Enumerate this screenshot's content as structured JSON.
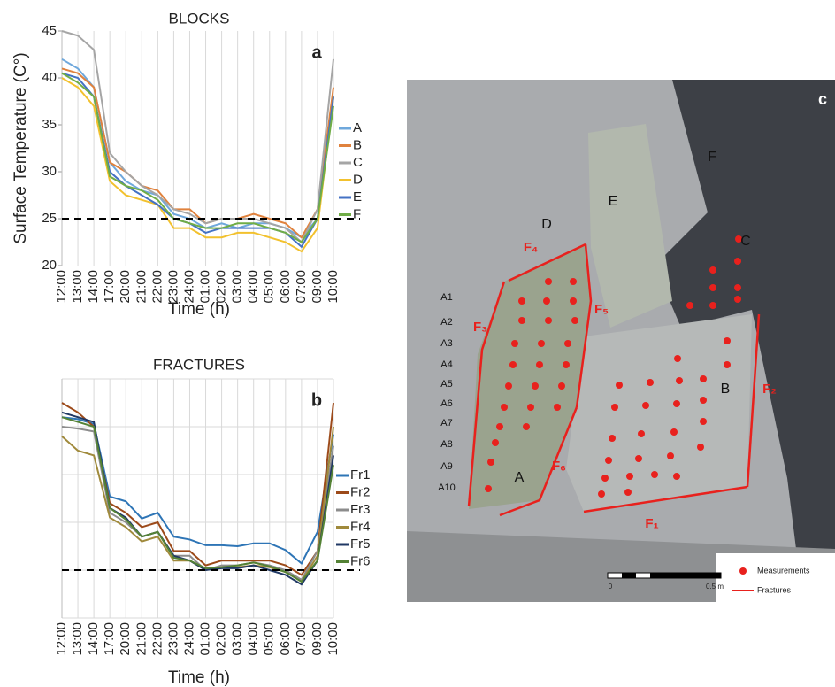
{
  "chart_data": [
    {
      "type": "line",
      "title": "BLOCKS",
      "panel": "a",
      "y_label": "Surface Temperature  (C°)",
      "x_label": "Time (h)",
      "categories": [
        "12:00",
        "13:00",
        "14:00",
        "17:00",
        "20:00",
        "21:00",
        "22:00",
        "23:00",
        "24:00",
        "01:00",
        "02:00",
        "03:00",
        "04:00",
        "05:00",
        "06:00",
        "07:00",
        "09:00",
        "10:00"
      ],
      "ylim": [
        20,
        45
      ],
      "yticks": [
        20,
        25,
        30,
        35,
        40,
        45
      ],
      "ytick_labels": true,
      "vertical_grid": true,
      "reference_line": 25,
      "series": [
        {
          "name": "A",
          "color": "#6fa8dc",
          "values": [
            42,
            41,
            39,
            31,
            29,
            28,
            27.5,
            25.5,
            25,
            24,
            24.5,
            24,
            24.5,
            24.5,
            24,
            23,
            25,
            38
          ]
        },
        {
          "name": "B",
          "color": "#e0823d",
          "values": [
            41,
            40.5,
            39,
            31,
            30,
            28.5,
            28,
            26,
            26,
            24.5,
            25,
            25,
            25.5,
            25,
            24.5,
            23,
            26,
            39
          ]
        },
        {
          "name": "C",
          "color": "#a5a5a5",
          "values": [
            45,
            44.5,
            43,
            32,
            30,
            28.5,
            27.5,
            26,
            25.5,
            24.5,
            25,
            25,
            25,
            24.5,
            24,
            22.5,
            26,
            42
          ]
        },
        {
          "name": "D",
          "color": "#f2c12e",
          "values": [
            40,
            39,
            37,
            29,
            27.5,
            27,
            26.5,
            24,
            24,
            23,
            23,
            23.5,
            23.5,
            23,
            22.5,
            21.5,
            24,
            38
          ]
        },
        {
          "name": "E",
          "color": "#4472c4",
          "values": [
            40.5,
            40,
            38,
            30,
            28.5,
            27.5,
            26.5,
            25,
            24.5,
            23.5,
            24,
            24,
            24,
            24,
            23.5,
            22,
            25,
            38
          ]
        },
        {
          "name": "F",
          "color": "#70ad47",
          "values": [
            40.5,
            39.5,
            38,
            29.5,
            28.5,
            28,
            27,
            25,
            24.5,
            24,
            24,
            24.5,
            24.5,
            24,
            23.5,
            22.5,
            25,
            37
          ]
        }
      ]
    },
    {
      "type": "line",
      "title": "FRACTURES",
      "panel": "b",
      "x_label": "Time (h)",
      "categories": [
        "12:00",
        "13:00",
        "14:00",
        "17:00",
        "20:00",
        "21:00",
        "22:00",
        "23:00",
        "24:00",
        "01:00",
        "02:00",
        "03:00",
        "04:00",
        "05:00",
        "06:00",
        "07:00",
        "09:00",
        "10:00"
      ],
      "ylim": [
        20,
        45
      ],
      "yticks": [
        20,
        25,
        30,
        35,
        40,
        45
      ],
      "ytick_labels": false,
      "vertical_grid": true,
      "reference_line": 25,
      "series": [
        {
          "name": "Fr1",
          "color": "#2e75b6",
          "values": [
            41,
            40.8,
            40.3,
            32.7,
            32.2,
            30.4,
            31,
            28.5,
            28.2,
            27.6,
            27.6,
            27.5,
            27.8,
            27.8,
            27.1,
            25.7,
            29,
            39.2
          ]
        },
        {
          "name": "Fr2",
          "color": "#9c4a1a",
          "values": [
            42.5,
            41.5,
            40,
            32,
            31,
            29.5,
            30,
            27,
            27,
            25.5,
            26,
            26,
            26,
            26,
            25.5,
            24.5,
            27,
            42.5
          ]
        },
        {
          "name": "Fr3",
          "color": "#8c8c8c",
          "values": [
            40,
            39.8,
            39.5,
            31,
            30,
            28.5,
            29,
            26.5,
            26.5,
            25,
            25.5,
            25.5,
            25.8,
            25.5,
            25,
            24,
            27,
            38
          ]
        },
        {
          "name": "Fr4",
          "color": "#a08a3c",
          "values": [
            39,
            37.5,
            37,
            30.5,
            29.5,
            28,
            28.5,
            26,
            26,
            25,
            25.3,
            25.3,
            25.5,
            25.3,
            24.8,
            23.8,
            26.5,
            40
          ]
        },
        {
          "name": "Fr5",
          "color": "#203864",
          "values": [
            41.5,
            41,
            40.5,
            31.5,
            30.5,
            28.5,
            29,
            26.5,
            26,
            25,
            25.2,
            25.2,
            25.5,
            25,
            24.5,
            23.5,
            26,
            37
          ]
        },
        {
          "name": "Fr6",
          "color": "#548235",
          "values": [
            41,
            40.5,
            40,
            31.5,
            30.3,
            28.5,
            29,
            26.3,
            26,
            25.2,
            25.3,
            25.5,
            25.8,
            25.4,
            24.8,
            23.8,
            26,
            36
          ]
        }
      ]
    }
  ],
  "photo": {
    "panel": "c",
    "blocks": [
      "F",
      "E",
      "D",
      "C",
      "B",
      "A"
    ],
    "fractures": [
      "F₁",
      "F₂",
      "F₃",
      "F₄",
      "F₅",
      "F₆"
    ],
    "rows": [
      "A1",
      "A2",
      "A3",
      "A4",
      "A5",
      "A6",
      "A7",
      "A8",
      "A9",
      "A10"
    ],
    "scale": [
      "0",
      "0.5 m"
    ],
    "legend": [
      "Measurements",
      "Fractures"
    ]
  }
}
